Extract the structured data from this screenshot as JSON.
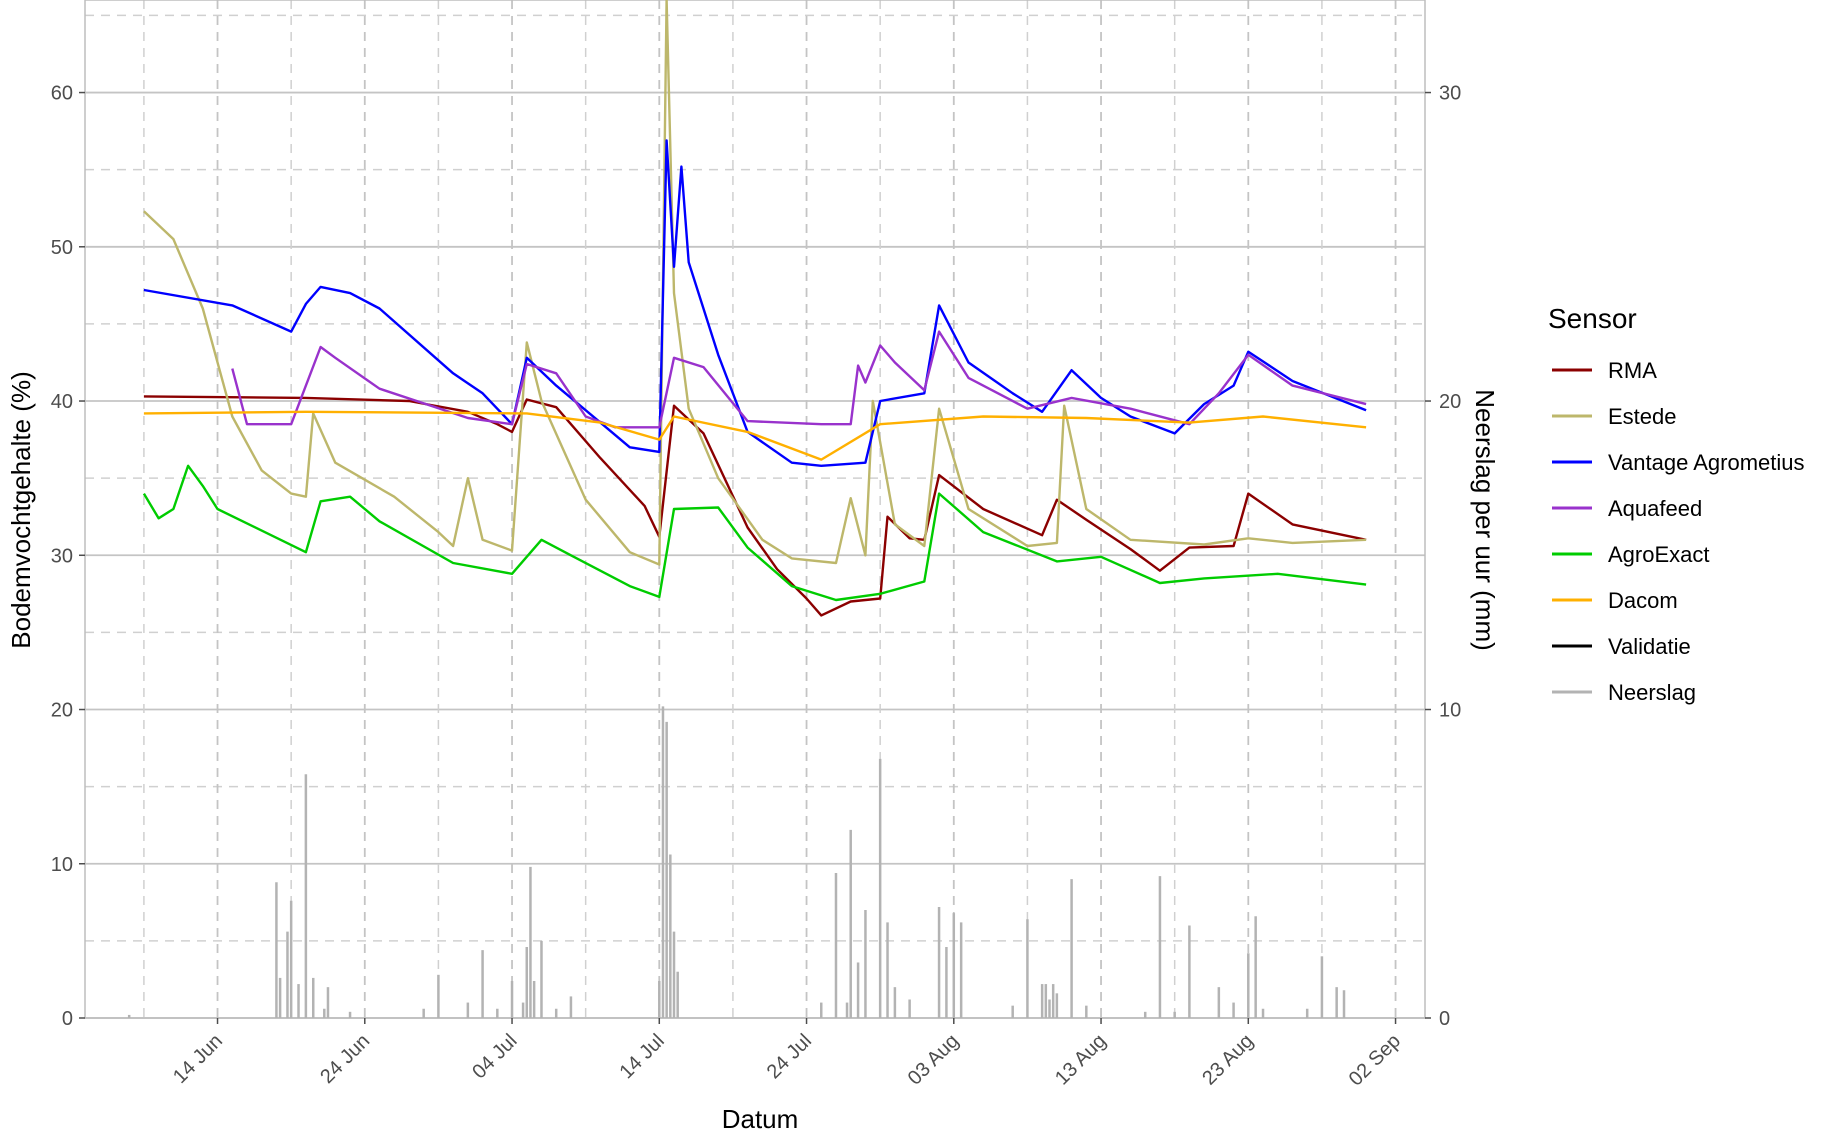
{
  "chart_data": {
    "type": "line",
    "xlabel": "Datum",
    "ylabel": "Bodemvochtgehalte (%)",
    "y2label": "Neerslag per uur (mm)",
    "xlim": [
      "2021-06-05",
      "2021-09-04"
    ],
    "ylim": [
      0,
      66
    ],
    "y2lim": [
      0,
      33
    ],
    "x_ticks": [
      "2021-06-14",
      "2021-06-24",
      "2021-07-04",
      "2021-07-14",
      "2021-07-24",
      "2021-08-03",
      "2021-08-13",
      "2021-08-23",
      "2021-09-02"
    ],
    "x_tick_labels": [
      "14 Jun",
      "24 Jun",
      "04 Jul",
      "14 Jul",
      "24 Jul",
      "03 Aug",
      "13 Aug",
      "23 Aug",
      "02 Sep"
    ],
    "y_ticks": [
      0,
      10,
      20,
      30,
      40,
      50,
      60
    ],
    "y2_ticks": [
      0,
      10,
      20,
      30
    ],
    "grid": true,
    "legend": {
      "title": "Sensor",
      "position": "right"
    },
    "series": [
      {
        "name": "RMA",
        "color": "#8b0000",
        "points": [
          [
            "2021-06-09",
            40.3
          ],
          [
            "2021-06-20",
            40.2
          ],
          [
            "2021-06-27",
            40.0
          ],
          [
            "2021-07-01",
            39.3
          ],
          [
            "2021-07-03",
            38.5
          ],
          [
            "2021-07-04",
            38.0
          ],
          [
            "2021-07-05",
            40.1
          ],
          [
            "2021-07-07",
            39.6
          ],
          [
            "2021-07-10",
            36.3
          ],
          [
            "2021-07-13",
            33.2
          ],
          [
            "2021-07-14",
            31.2
          ],
          [
            "2021-07-15",
            39.7
          ],
          [
            "2021-07-17",
            37.9
          ],
          [
            "2021-07-20",
            31.8
          ],
          [
            "2021-07-22",
            29.1
          ],
          [
            "2021-07-24",
            27.2
          ],
          [
            "2021-07-25",
            26.1
          ],
          [
            "2021-07-27",
            27.0
          ],
          [
            "2021-07-29",
            27.2
          ],
          [
            "2021-07-29T12:00",
            32.5
          ],
          [
            "2021-07-31",
            31.1
          ],
          [
            "2021-08-01",
            31.0
          ],
          [
            "2021-08-02",
            35.2
          ],
          [
            "2021-08-05",
            33.0
          ],
          [
            "2021-08-09",
            31.3
          ],
          [
            "2021-08-10",
            33.6
          ],
          [
            "2021-08-12",
            32.3
          ],
          [
            "2021-08-15",
            30.4
          ],
          [
            "2021-08-17",
            29.0
          ],
          [
            "2021-08-19",
            30.5
          ],
          [
            "2021-08-22",
            30.6
          ],
          [
            "2021-08-23",
            34.0
          ],
          [
            "2021-08-26",
            32.0
          ],
          [
            "2021-08-31",
            31.0
          ]
        ]
      },
      {
        "name": "Estede",
        "color": "#bdb76b",
        "points": [
          [
            "2021-06-09",
            52.3
          ],
          [
            "2021-06-11",
            50.5
          ],
          [
            "2021-06-13",
            46.0
          ],
          [
            "2021-06-15",
            39.0
          ],
          [
            "2021-06-17",
            35.5
          ],
          [
            "2021-06-19",
            34.0
          ],
          [
            "2021-06-20",
            33.8
          ],
          [
            "2021-06-20T12:00",
            39.2
          ],
          [
            "2021-06-22",
            36.0
          ],
          [
            "2021-06-26",
            33.8
          ],
          [
            "2021-06-29",
            31.5
          ],
          [
            "2021-06-30",
            30.6
          ],
          [
            "2021-07-01",
            35.0
          ],
          [
            "2021-07-02",
            31.0
          ],
          [
            "2021-07-04",
            30.3
          ],
          [
            "2021-07-05",
            43.8
          ],
          [
            "2021-07-06",
            40.0
          ],
          [
            "2021-07-09",
            33.6
          ],
          [
            "2021-07-12",
            30.2
          ],
          [
            "2021-07-14",
            29.4
          ],
          [
            "2021-07-14T12:00",
            66.0
          ],
          [
            "2021-07-15",
            47.0
          ],
          [
            "2021-07-16",
            39.5
          ],
          [
            "2021-07-18",
            35.0
          ],
          [
            "2021-07-21",
            31.0
          ],
          [
            "2021-07-23",
            29.8
          ],
          [
            "2021-07-26",
            29.5
          ],
          [
            "2021-07-27",
            33.7
          ],
          [
            "2021-07-28",
            30.0
          ],
          [
            "2021-07-28T12:00",
            40.0
          ],
          [
            "2021-07-30",
            32.0
          ],
          [
            "2021-08-01",
            30.6
          ],
          [
            "2021-08-02",
            39.5
          ],
          [
            "2021-08-04",
            33.0
          ],
          [
            "2021-08-08",
            30.6
          ],
          [
            "2021-08-10",
            30.8
          ],
          [
            "2021-08-10T12:00",
            39.7
          ],
          [
            "2021-08-12",
            33.0
          ],
          [
            "2021-08-15",
            31.0
          ],
          [
            "2021-08-20",
            30.7
          ],
          [
            "2021-08-23",
            31.1
          ],
          [
            "2021-08-26",
            30.8
          ],
          [
            "2021-08-31",
            31.0
          ]
        ]
      },
      {
        "name": "Vantage Agrometius",
        "color": "#0000ff",
        "points": [
          [
            "2021-06-09",
            47.2
          ],
          [
            "2021-06-15",
            46.2
          ],
          [
            "2021-06-19",
            44.5
          ],
          [
            "2021-06-20",
            46.3
          ],
          [
            "2021-06-21",
            47.4
          ],
          [
            "2021-06-23",
            47.0
          ],
          [
            "2021-06-25",
            46.0
          ],
          [
            "2021-06-30",
            41.8
          ],
          [
            "2021-07-02",
            40.5
          ],
          [
            "2021-07-04",
            38.5
          ],
          [
            "2021-07-05",
            42.8
          ],
          [
            "2021-07-07",
            41.0
          ],
          [
            "2021-07-10",
            38.6
          ],
          [
            "2021-07-12",
            37.0
          ],
          [
            "2021-07-14",
            36.7
          ],
          [
            "2021-07-14T12:00",
            56.9
          ],
          [
            "2021-07-15",
            48.7
          ],
          [
            "2021-07-15T12:00",
            55.2
          ],
          [
            "2021-07-16",
            49.0
          ],
          [
            "2021-07-18",
            43.0
          ],
          [
            "2021-07-20",
            38.0
          ],
          [
            "2021-07-23",
            36.0
          ],
          [
            "2021-07-25",
            35.8
          ],
          [
            "2021-07-28",
            36.0
          ],
          [
            "2021-07-29",
            40.0
          ],
          [
            "2021-08-01",
            40.5
          ],
          [
            "2021-08-02",
            46.2
          ],
          [
            "2021-08-04",
            42.5
          ],
          [
            "2021-08-07",
            40.5
          ],
          [
            "2021-08-09",
            39.3
          ],
          [
            "2021-08-11",
            42.0
          ],
          [
            "2021-08-13",
            40.2
          ],
          [
            "2021-08-15",
            39.0
          ],
          [
            "2021-08-18",
            37.9
          ],
          [
            "2021-08-20",
            39.8
          ],
          [
            "2021-08-22",
            41.0
          ],
          [
            "2021-08-23",
            43.2
          ],
          [
            "2021-08-26",
            41.3
          ],
          [
            "2021-08-31",
            39.4
          ]
        ]
      },
      {
        "name": "Aquafeed",
        "color": "#9932cc",
        "points": [
          [
            "2021-06-15",
            42.1
          ],
          [
            "2021-06-16",
            38.5
          ],
          [
            "2021-06-19",
            38.5
          ],
          [
            "2021-06-20",
            41.0
          ],
          [
            "2021-06-21",
            43.5
          ],
          [
            "2021-06-22",
            42.8
          ],
          [
            "2021-06-25",
            40.8
          ],
          [
            "2021-07-01",
            38.9
          ],
          [
            "2021-07-04",
            38.5
          ],
          [
            "2021-07-05",
            42.4
          ],
          [
            "2021-07-07",
            41.8
          ],
          [
            "2021-07-09",
            39.0
          ],
          [
            "2021-07-11",
            38.3
          ],
          [
            "2021-07-14",
            38.3
          ],
          [
            "2021-07-15",
            42.8
          ],
          [
            "2021-07-17",
            42.2
          ],
          [
            "2021-07-20",
            38.7
          ],
          [
            "2021-07-25",
            38.5
          ],
          [
            "2021-07-27",
            38.5
          ],
          [
            "2021-07-27T12:00",
            42.3
          ],
          [
            "2021-07-28",
            41.2
          ],
          [
            "2021-07-29",
            43.6
          ],
          [
            "2021-07-30",
            42.5
          ],
          [
            "2021-08-01",
            40.7
          ],
          [
            "2021-08-02",
            44.5
          ],
          [
            "2021-08-04",
            41.5
          ],
          [
            "2021-08-08",
            39.5
          ],
          [
            "2021-08-11",
            40.2
          ],
          [
            "2021-08-15",
            39.5
          ],
          [
            "2021-08-19",
            38.5
          ],
          [
            "2021-08-21",
            40.5
          ],
          [
            "2021-08-23",
            43.0
          ],
          [
            "2021-08-26",
            41.0
          ],
          [
            "2021-08-31",
            39.8
          ]
        ]
      },
      {
        "name": "AgroExact",
        "color": "#00cc00",
        "points": [
          [
            "2021-06-09",
            34.0
          ],
          [
            "2021-06-10",
            32.4
          ],
          [
            "2021-06-11",
            33.0
          ],
          [
            "2021-06-12",
            35.8
          ],
          [
            "2021-06-13",
            34.5
          ],
          [
            "2021-06-14",
            33.0
          ],
          [
            "2021-06-20",
            30.2
          ],
          [
            "2021-06-21",
            33.5
          ],
          [
            "2021-06-23",
            33.8
          ],
          [
            "2021-06-25",
            32.2
          ],
          [
            "2021-06-30",
            29.5
          ],
          [
            "2021-07-04",
            28.8
          ],
          [
            "2021-07-06",
            31.0
          ],
          [
            "2021-07-08",
            30.0
          ],
          [
            "2021-07-12",
            28.0
          ],
          [
            "2021-07-14",
            27.3
          ],
          [
            "2021-07-15",
            33.0
          ],
          [
            "2021-07-18",
            33.1
          ],
          [
            "2021-07-20",
            30.5
          ],
          [
            "2021-07-23",
            28.0
          ],
          [
            "2021-07-26",
            27.1
          ],
          [
            "2021-07-29",
            27.5
          ],
          [
            "2021-08-01",
            28.3
          ],
          [
            "2021-08-02",
            34.0
          ],
          [
            "2021-08-05",
            31.5
          ],
          [
            "2021-08-10",
            29.6
          ],
          [
            "2021-08-13",
            29.9
          ],
          [
            "2021-08-17",
            28.2
          ],
          [
            "2021-08-20",
            28.5
          ],
          [
            "2021-08-25",
            28.8
          ],
          [
            "2021-08-31",
            28.1
          ]
        ]
      },
      {
        "name": "Dacom",
        "color": "#ffb000",
        "points": [
          [
            "2021-06-09",
            39.2
          ],
          [
            "2021-06-20",
            39.3
          ],
          [
            "2021-07-05",
            39.2
          ],
          [
            "2021-07-10",
            38.6
          ],
          [
            "2021-07-14",
            37.5
          ],
          [
            "2021-07-15",
            39.0
          ],
          [
            "2021-07-20",
            38.0
          ],
          [
            "2021-07-25",
            36.2
          ],
          [
            "2021-07-29",
            38.5
          ],
          [
            "2021-08-05",
            39.0
          ],
          [
            "2021-08-12",
            38.9
          ],
          [
            "2021-08-19",
            38.6
          ],
          [
            "2021-08-24",
            39.0
          ],
          [
            "2021-08-31",
            38.3
          ]
        ]
      },
      {
        "name": "Validatie",
        "color": "#000000",
        "points": []
      },
      {
        "name": "Neerslag",
        "color": "#b3b3b3",
        "axis": "right",
        "bars": [
          [
            "2021-06-08",
            0.1
          ],
          [
            "2021-06-18",
            4.4
          ],
          [
            "2021-06-18T06:00",
            1.3
          ],
          [
            "2021-06-18T18:00",
            2.8
          ],
          [
            "2021-06-19",
            3.8
          ],
          [
            "2021-06-19T12:00",
            1.1
          ],
          [
            "2021-06-20",
            7.9
          ],
          [
            "2021-06-20T12:00",
            1.3
          ],
          [
            "2021-06-21T06:00",
            0.3
          ],
          [
            "2021-06-21T12:00",
            1.0
          ],
          [
            "2021-06-23",
            0.2
          ],
          [
            "2021-06-28",
            0.3
          ],
          [
            "2021-06-29",
            1.4
          ],
          [
            "2021-07-01",
            0.5
          ],
          [
            "2021-07-02",
            2.2
          ],
          [
            "2021-07-03",
            0.3
          ],
          [
            "2021-07-04",
            1.2
          ],
          [
            "2021-07-04T18:00",
            0.5
          ],
          [
            "2021-07-05",
            2.3
          ],
          [
            "2021-07-05T06:00",
            4.9
          ],
          [
            "2021-07-05T12:00",
            1.2
          ],
          [
            "2021-07-06",
            2.5
          ],
          [
            "2021-07-07",
            0.3
          ],
          [
            "2021-07-08",
            0.7
          ],
          [
            "2021-07-14",
            1.2
          ],
          [
            "2021-07-14T06:00",
            10.1
          ],
          [
            "2021-07-14T12:00",
            9.6
          ],
          [
            "2021-07-14T18:00",
            5.3
          ],
          [
            "2021-07-15",
            2.8
          ],
          [
            "2021-07-15T06:00",
            1.5
          ],
          [
            "2021-07-25",
            0.5
          ],
          [
            "2021-07-26",
            4.7
          ],
          [
            "2021-07-26T18:00",
            0.5
          ],
          [
            "2021-07-27",
            6.1
          ],
          [
            "2021-07-27T12:00",
            1.8
          ],
          [
            "2021-07-28",
            3.5
          ],
          [
            "2021-07-29",
            8.4
          ],
          [
            "2021-07-29T12:00",
            3.1
          ],
          [
            "2021-07-30",
            1.0
          ],
          [
            "2021-07-31",
            0.6
          ],
          [
            "2021-08-02",
            3.6
          ],
          [
            "2021-08-02T12:00",
            2.3
          ],
          [
            "2021-08-03",
            3.4
          ],
          [
            "2021-08-03T12:00",
            3.1
          ],
          [
            "2021-08-07",
            0.4
          ],
          [
            "2021-08-08",
            3.2
          ],
          [
            "2021-08-09",
            1.1
          ],
          [
            "2021-08-09T06:00",
            1.1
          ],
          [
            "2021-08-09T12:00",
            0.6
          ],
          [
            "2021-08-09T18:00",
            1.1
          ],
          [
            "2021-08-10",
            0.8
          ],
          [
            "2021-08-11",
            4.5
          ],
          [
            "2021-08-12",
            0.4
          ],
          [
            "2021-08-16",
            0.2
          ],
          [
            "2021-08-17",
            4.6
          ],
          [
            "2021-08-18",
            0.2
          ],
          [
            "2021-08-19",
            3.0
          ],
          [
            "2021-08-21",
            1.0
          ],
          [
            "2021-08-22",
            0.5
          ],
          [
            "2021-08-23",
            2.1
          ],
          [
            "2021-08-23T12:00",
            3.3
          ],
          [
            "2021-08-24",
            0.3
          ],
          [
            "2021-08-27",
            0.3
          ],
          [
            "2021-08-28",
            2.0
          ],
          [
            "2021-08-29",
            1.0
          ],
          [
            "2021-08-29T12:00",
            0.9
          ]
        ]
      }
    ]
  }
}
